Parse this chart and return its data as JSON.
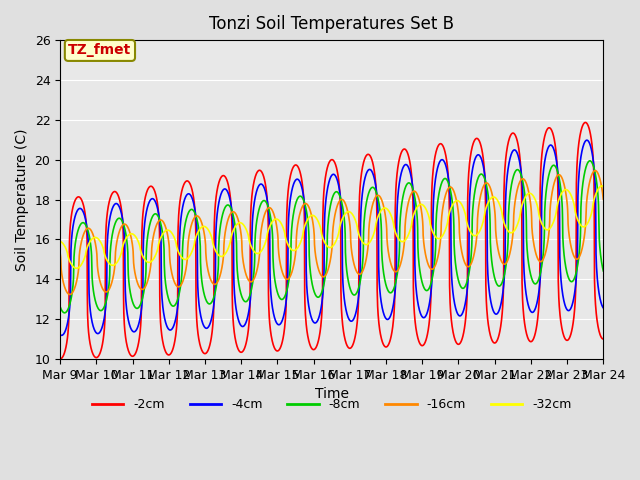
{
  "title": "Tonzi Soil Temperatures Set B",
  "xlabel": "Time",
  "ylabel": "Soil Temperature (C)",
  "ylim": [
    10,
    26
  ],
  "background_color": "#e0e0e0",
  "plot_bg_color": "#e8e8e8",
  "grid_color": "#ffffff",
  "annotation_text": "TZ_fmet",
  "annotation_bg": "#ffffcc",
  "annotation_border": "#888800",
  "annotation_text_color": "#cc0000",
  "legend_entries": [
    "-2cm",
    "-4cm",
    "-8cm",
    "-16cm",
    "-32cm"
  ],
  "line_colors": [
    "#ff0000",
    "#0000ff",
    "#00cc00",
    "#ff8800",
    "#ffff00"
  ],
  "line_widths": [
    1.2,
    1.2,
    1.2,
    1.2,
    1.2
  ],
  "tick_labels": [
    "Mar 9",
    "Mar 10",
    "Mar 11",
    "Mar 12",
    "Mar 13",
    "Mar 14",
    "Mar 15",
    "Mar 16",
    "Mar 17",
    "Mar 18",
    "Mar 19",
    "Mar 20",
    "Mar 21",
    "Mar 22",
    "Mar 23",
    "Mar 24"
  ],
  "tick_positions": [
    0,
    1,
    2,
    3,
    4,
    5,
    6,
    7,
    8,
    9,
    10,
    11,
    12,
    13,
    14,
    15
  ]
}
